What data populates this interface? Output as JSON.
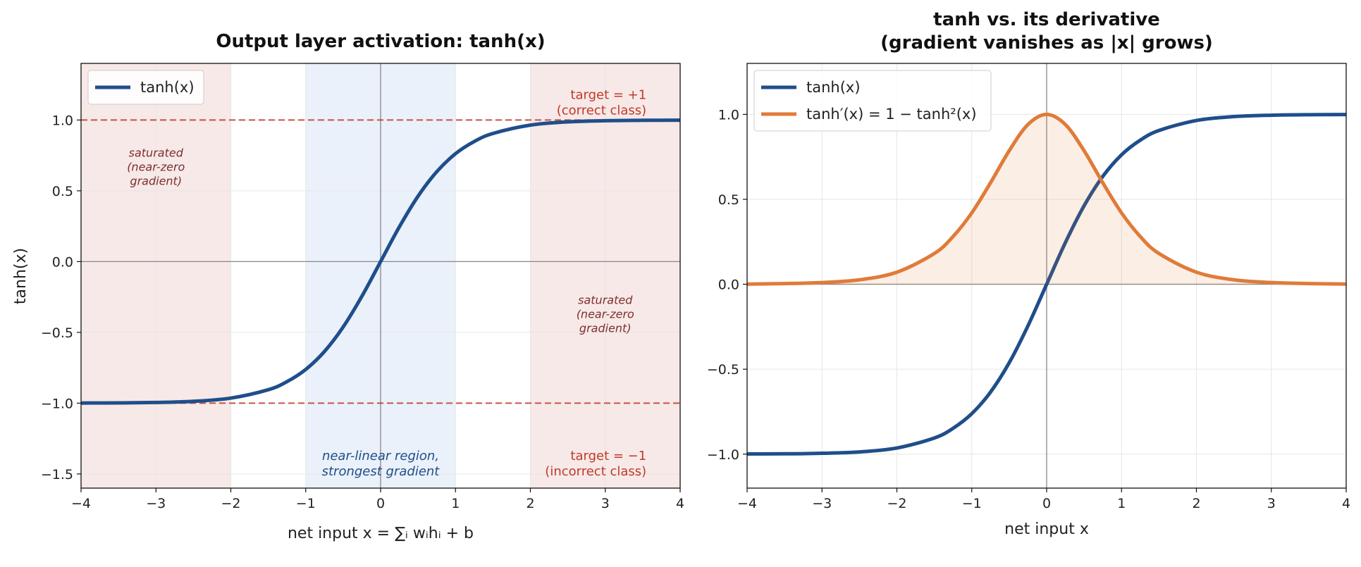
{
  "chart_data": [
    {
      "type": "line",
      "title": "Output layer activation: tanh(x)",
      "xlabel": "net input  x = ∑ᵢ wᵢhᵢ + b",
      "ylabel": "tanh(x)",
      "xlim": [
        -4,
        4
      ],
      "ylim": [
        -1.6,
        1.4
      ],
      "xticks": [
        -4,
        -3,
        -2,
        -1,
        0,
        1,
        2,
        3,
        4
      ],
      "yticks": [
        1.0,
        0.5,
        0.0,
        -0.5,
        -1.0,
        -1.5
      ],
      "xtick_labels": [
        "−4",
        "−3",
        "−2",
        "−1",
        "0",
        "1",
        "2",
        "3",
        "4"
      ],
      "ytick_labels": [
        "1.0",
        "0.5",
        "0.0",
        "−0.5",
        "−1.0",
        "−1.5"
      ],
      "grid": true,
      "legend": "top-left",
      "series": [
        {
          "name": "tanh(x)",
          "color": "#1f4e8a",
          "x": [
            -4,
            -3.5,
            -3,
            -2.5,
            -2,
            -1.5,
            -1.25,
            -1,
            -0.75,
            -0.5,
            -0.25,
            0,
            0.25,
            0.5,
            0.75,
            1,
            1.25,
            1.5,
            2,
            2.5,
            3,
            3.5,
            4
          ],
          "y": [
            -0.999,
            -0.998,
            -0.995,
            -0.987,
            -0.964,
            -0.905,
            -0.848,
            -0.762,
            -0.635,
            -0.462,
            -0.245,
            0,
            0.245,
            0.462,
            0.635,
            0.762,
            0.848,
            0.905,
            0.964,
            0.987,
            0.995,
            0.998,
            0.999
          ]
        }
      ],
      "reference_lines": [
        {
          "y": 1.0,
          "color": "#c0392b",
          "style": "dashed"
        },
        {
          "y": -1.0,
          "color": "#c0392b",
          "style": "dashed"
        }
      ],
      "regions": [
        {
          "kind": "saturated",
          "x": [
            -4,
            -2
          ],
          "color": "#f7e9e7"
        },
        {
          "kind": "near-linear",
          "x": [
            -1,
            1
          ],
          "color": "#eaf1fa"
        },
        {
          "kind": "saturated",
          "x": [
            2,
            4
          ],
          "color": "#f7e9e7"
        }
      ],
      "annotations": {
        "saturated_left": [
          "saturated",
          "(near-zero",
          "gradient)"
        ],
        "saturated_right": [
          "saturated",
          "(near-zero",
          "gradient)"
        ],
        "target_pos": [
          "target = +1",
          "(correct class)"
        ],
        "target_neg": [
          "target = −1",
          "(incorrect class)"
        ],
        "near_linear": [
          "near-linear region,",
          "strongest gradient"
        ]
      }
    },
    {
      "type": "line",
      "title": [
        "tanh vs. its derivative",
        "(gradient vanishes as |x| grows)"
      ],
      "xlabel": "net input  x",
      "ylabel": "",
      "xlim": [
        -4,
        4
      ],
      "ylim": [
        -1.2,
        1.3
      ],
      "xticks": [
        -4,
        -3,
        -2,
        -1,
        0,
        1,
        2,
        3,
        4
      ],
      "yticks": [
        1.0,
        0.5,
        0.0,
        -0.5,
        -1.0
      ],
      "xtick_labels": [
        "−4",
        "−3",
        "−2",
        "−1",
        "0",
        "1",
        "2",
        "3",
        "4"
      ],
      "ytick_labels": [
        "1.0",
        "0.5",
        "0.0",
        "−0.5",
        "−1.0"
      ],
      "grid": true,
      "legend": "top-left",
      "series": [
        {
          "name": "tanh(x)",
          "color": "#1f4e8a",
          "x": [
            -4,
            -3.5,
            -3,
            -2.5,
            -2,
            -1.5,
            -1.25,
            -1,
            -0.75,
            -0.5,
            -0.25,
            0,
            0.25,
            0.5,
            0.75,
            1,
            1.25,
            1.5,
            2,
            2.5,
            3,
            3.5,
            4
          ],
          "y": [
            -0.999,
            -0.998,
            -0.995,
            -0.987,
            -0.964,
            -0.905,
            -0.848,
            -0.762,
            -0.635,
            -0.462,
            -0.245,
            0,
            0.245,
            0.462,
            0.635,
            0.762,
            0.848,
            0.905,
            0.964,
            0.987,
            0.995,
            0.998,
            0.999
          ]
        },
        {
          "name": "tanh′(x) = 1 − tanh²(x)",
          "color": "#e07b39",
          "fill": true,
          "x": [
            -4,
            -3.5,
            -3,
            -2.5,
            -2,
            -1.5,
            -1.25,
            -1,
            -0.75,
            -0.5,
            -0.25,
            0,
            0.25,
            0.5,
            0.75,
            1,
            1.25,
            1.5,
            2,
            2.5,
            3,
            3.5,
            4
          ],
          "y": [
            0.001,
            0.004,
            0.01,
            0.026,
            0.071,
            0.181,
            0.281,
            0.42,
            0.597,
            0.786,
            0.94,
            1.0,
            0.94,
            0.786,
            0.597,
            0.42,
            0.281,
            0.181,
            0.071,
            0.026,
            0.01,
            0.004,
            0.001
          ]
        }
      ]
    }
  ]
}
